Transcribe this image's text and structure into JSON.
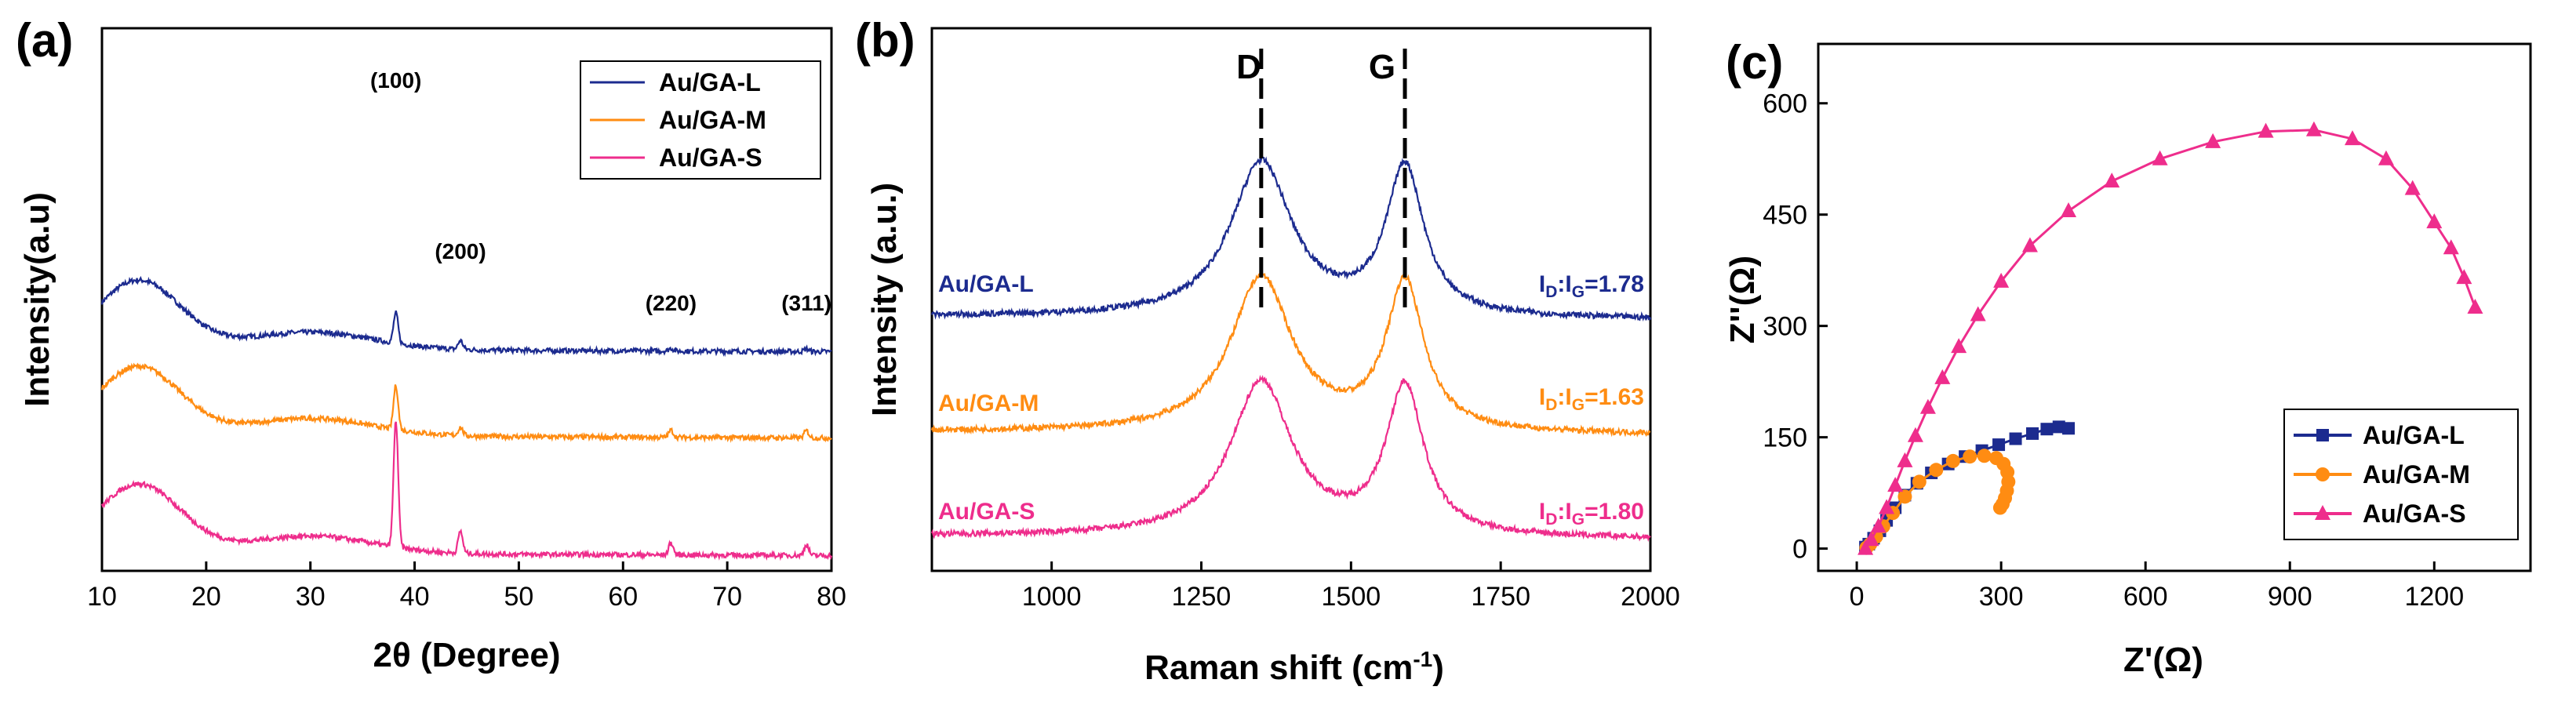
{
  "colors": {
    "L": "#1c2b8f",
    "M": "#ff8c12",
    "S": "#ee2d8c",
    "axis": "#000000"
  },
  "chart_data": [
    {
      "panel": "(a)",
      "type": "line",
      "title": "",
      "xlabel": "2θ (Degree)",
      "ylabel": "Intensity(a.u)",
      "xlim": [
        10,
        80
      ],
      "xticks": [
        "10",
        "20",
        "30",
        "40",
        "50",
        "60",
        "70",
        "80"
      ],
      "legend": [
        "Au/GA-L",
        "Au/GA-M",
        "Au/GA-S"
      ],
      "legend_position": "top-right",
      "peak_labels": [
        {
          "label": "(100)",
          "x": 38.2
        },
        {
          "label": "(200)",
          "x": 44.4
        },
        {
          "label": "(220)",
          "x": 64.6
        },
        {
          "label": "(311)",
          "x": 77.6
        }
      ],
      "series": [
        {
          "name": "Au/GA-L",
          "offset": 2,
          "peak_heights": [
            0.55,
            0.16,
            0.05,
            0.05
          ]
        },
        {
          "name": "Au/GA-M",
          "offset": 1,
          "peak_heights": [
            0.8,
            0.15,
            0.13,
            0.13
          ]
        },
        {
          "name": "Au/GA-S",
          "offset": 0,
          "peak_heights": [
            2.3,
            0.4,
            0.22,
            0.2
          ]
        }
      ]
    },
    {
      "panel": "(b)",
      "type": "line",
      "title": "",
      "xlabel": "Raman shift (cm⁻¹)",
      "xlabel_main": "Raman shift (cm",
      "xlabel_sup": "-1",
      "xlabel_end": ")",
      "ylabel": "Intensity (a.u.)",
      "xlim": [
        800,
        2000
      ],
      "xticks": [
        "1000",
        "1250",
        "1500",
        "1750",
        "2000"
      ],
      "band_labels": [
        {
          "label": "D",
          "x": 1350
        },
        {
          "label": "G",
          "x": 1590
        }
      ],
      "series": [
        {
          "name": "Au/GA-L",
          "ratio_prefix": "I",
          "ratio_sub1": "D",
          "ratio_mid": ":I",
          "ratio_sub2": "G",
          "ratio_value": "=1.78",
          "ID_IG": 1.78
        },
        {
          "name": "Au/GA-M",
          "ratio_prefix": "I",
          "ratio_sub1": "D",
          "ratio_mid": ":I",
          "ratio_sub2": "G",
          "ratio_value": "=1.63",
          "ID_IG": 1.63
        },
        {
          "name": "Au/GA-S",
          "ratio_prefix": "I",
          "ratio_sub1": "D",
          "ratio_mid": ":I",
          "ratio_sub2": "G",
          "ratio_value": "=1.80",
          "ID_IG": 1.8
        }
      ]
    },
    {
      "panel": "(c)",
      "type": "scatter",
      "title": "",
      "xlabel": "Z'(Ω)",
      "ylabel": "Z''(Ω)",
      "xlim": [
        -80,
        1400
      ],
      "ylim": [
        -30,
        680
      ],
      "xticks": [
        0,
        300,
        600,
        900,
        1200
      ],
      "yticks": [
        0,
        150,
        300,
        450,
        600
      ],
      "legend_position": "bottom-right",
      "series": [
        {
          "name": "Au/GA-L",
          "marker": "square",
          "x": [
            18,
            25,
            35,
            48,
            62,
            80,
            100,
            125,
            155,
            190,
            225,
            260,
            295,
            330,
            365,
            395,
            420,
            440
          ],
          "y": [
            2,
            6,
            14,
            24,
            38,
            55,
            72,
            88,
            102,
            114,
            124,
            132,
            140,
            148,
            155,
            161,
            164,
            162
          ]
        },
        {
          "name": "Au/GA-M",
          "marker": "circle",
          "x": [
            20,
            28,
            40,
            55,
            75,
            100,
            130,
            165,
            200,
            235,
            265,
            290,
            305,
            313,
            315,
            312,
            308,
            303,
            298
          ],
          "y": [
            1,
            6,
            16,
            30,
            48,
            70,
            90,
            106,
            118,
            124,
            125,
            122,
            114,
            103,
            90,
            78,
            68,
            60,
            55
          ]
        },
        {
          "name": "Au/GA-S",
          "marker": "triangle",
          "x": [
            18,
            30,
            45,
            62,
            80,
            100,
            122,
            148,
            178,
            212,
            252,
            300,
            360,
            440,
            530,
            630,
            740,
            850,
            950,
            1030,
            1100,
            1155,
            1200,
            1235,
            1262,
            1285
          ],
          "y": [
            0,
            12,
            30,
            55,
            85,
            118,
            152,
            190,
            230,
            272,
            315,
            360,
            408,
            455,
            495,
            525,
            548,
            562,
            564,
            552,
            525,
            485,
            440,
            405,
            365,
            325
          ]
        }
      ]
    }
  ]
}
